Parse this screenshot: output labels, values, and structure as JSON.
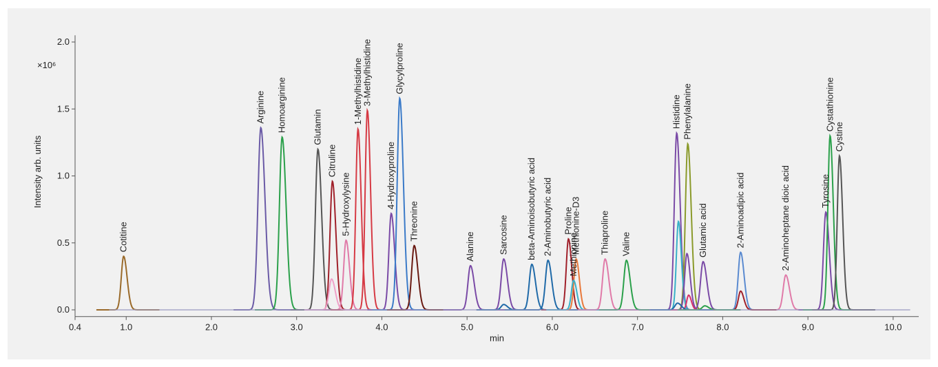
{
  "chart_data": {
    "type": "line",
    "xlabel": "min",
    "ylabel": "Intensity arb. units",
    "y_multiplier": "×10⁶",
    "xlim": [
      0.4,
      10.3
    ],
    "ylim": [
      -0.05,
      2.05
    ],
    "x_ticks": [
      0.4,
      1.0,
      2.0,
      3.0,
      4.0,
      5.0,
      6.0,
      7.0,
      8.0,
      9.0,
      10.0
    ],
    "x_tick_labels": [
      "0.4",
      "1.0",
      "2.0",
      "3.0",
      "4.0",
      "5.0",
      "6.0",
      "7.0",
      "8.0",
      "9.0",
      "10.0"
    ],
    "y_ticks": [
      0.0,
      0.5,
      1.0,
      1.5,
      2.0
    ],
    "y_tick_labels": [
      "0.0",
      "0.5",
      "1.0",
      "1.5",
      "2.0"
    ],
    "grid": false,
    "series": [
      {
        "name": "Cotitine",
        "x": 0.97,
        "y": 0.4,
        "width": 0.028,
        "color": "#9a6a2a"
      },
      {
        "name": "Arginine",
        "x": 2.58,
        "y": 1.36,
        "width": 0.034,
        "color": "#6a5aa6"
      },
      {
        "name": "Homoarginine",
        "x": 2.83,
        "y": 1.29,
        "width": 0.032,
        "color": "#2aa04a"
      },
      {
        "name": "Glutamin",
        "x": 3.25,
        "y": 1.2,
        "width": 0.03,
        "color": "#555555"
      },
      {
        "name": "Citruline",
        "x": 3.42,
        "y": 0.96,
        "width": 0.028,
        "color": "#a0202a"
      },
      {
        "name": "5-Hydroxylysine",
        "x": 3.58,
        "y": 0.52,
        "width": 0.028,
        "color": "#e07aa8"
      },
      {
        "name": "1-Methylhistidine",
        "x": 3.72,
        "y": 1.35,
        "width": 0.026,
        "color": "#d63a44"
      },
      {
        "name": "3-Methylhistidine",
        "x": 3.83,
        "y": 1.49,
        "width": 0.026,
        "color": "#d63a44"
      },
      {
        "name": "4-Hydroxyproline",
        "x": 4.11,
        "y": 0.72,
        "width": 0.028,
        "color": "#7a4aa6"
      },
      {
        "name": "Glycylproline",
        "x": 4.21,
        "y": 1.58,
        "width": 0.03,
        "color": "#3a7ac8"
      },
      {
        "name": "Threonine",
        "x": 4.38,
        "y": 0.48,
        "width": 0.03,
        "color": "#6a1a12"
      },
      {
        "name": "Alanine",
        "x": 5.04,
        "y": 0.33,
        "width": 0.03,
        "color": "#7a4aa6"
      },
      {
        "name": "Sarcosine",
        "x": 5.43,
        "y": 0.38,
        "width": 0.03,
        "color": "#7a4aa6"
      },
      {
        "name": "beta-Aminoisobutyric acid",
        "x": 5.76,
        "y": 0.34,
        "width": 0.03,
        "color": "#1f6aa8"
      },
      {
        "name": "2-Aminobutyric acid",
        "x": 5.95,
        "y": 0.37,
        "width": 0.03,
        "color": "#1f6aa8"
      },
      {
        "name": "Proline",
        "x": 6.19,
        "y": 0.53,
        "width": 0.026,
        "color": "#a0202a"
      },
      {
        "name": "Methionine-D3",
        "x": 6.28,
        "y": 0.38,
        "width": 0.026,
        "color": "#e8783a"
      },
      {
        "name": "Methionine",
        "x": 6.25,
        "y": 0.22,
        "width": 0.026,
        "color": "#38b0c8"
      },
      {
        "name": "Thiaproline",
        "x": 6.62,
        "y": 0.38,
        "width": 0.03,
        "color": "#e07aa8"
      },
      {
        "name": "Valine",
        "x": 6.87,
        "y": 0.37,
        "width": 0.03,
        "color": "#2aa04a"
      },
      {
        "name": "Histidine",
        "x": 7.46,
        "y": 1.32,
        "width": 0.028,
        "color": "#7a4aa6"
      },
      {
        "name": "Phenylalanine",
        "x": 7.59,
        "y": 1.24,
        "width": 0.028,
        "color": "#8a9a2a"
      },
      {
        "name": "Glutamic acid",
        "x": 7.77,
        "y": 0.36,
        "width": 0.03,
        "color": "#7a4aa6"
      },
      {
        "name": "2-Aminoadipic acid",
        "x": 8.21,
        "y": 0.43,
        "width": 0.028,
        "color": "#5a8ad0"
      },
      {
        "name": "2-Aminoheptane dioic acid",
        "x": 8.74,
        "y": 0.26,
        "width": 0.03,
        "color": "#e07aa8"
      },
      {
        "name": "Tyrosine",
        "x": 9.21,
        "y": 0.73,
        "width": 0.028,
        "color": "#7a4aa6"
      },
      {
        "name": "Cystathionine",
        "x": 9.26,
        "y": 1.3,
        "width": 0.026,
        "color": "#2aa04a"
      },
      {
        "name": "Cystine",
        "x": 9.37,
        "y": 1.15,
        "width": 0.026,
        "color": "#555555"
      },
      {
        "name": "",
        "x": 3.41,
        "y": 0.23,
        "width": 0.03,
        "color": "#f0a0c8"
      },
      {
        "name": "",
        "x": 7.48,
        "y": 0.66,
        "width": 0.024,
        "color": "#38b0c8"
      },
      {
        "name": "",
        "x": 7.58,
        "y": 0.42,
        "width": 0.026,
        "color": "#7a4aa6"
      },
      {
        "name": "",
        "x": 7.6,
        "y": 0.11,
        "width": 0.022,
        "color": "#d6306a"
      },
      {
        "name": "",
        "x": 8.21,
        "y": 0.14,
        "width": 0.026,
        "color": "#a0202a"
      },
      {
        "name": "",
        "x": 5.43,
        "y": 0.04,
        "width": 0.03,
        "color": "#1f6aa8"
      },
      {
        "name": "",
        "x": 7.47,
        "y": 0.05,
        "width": 0.03,
        "color": "#1f6aa8"
      },
      {
        "name": "",
        "x": 7.79,
        "y": 0.03,
        "width": 0.03,
        "color": "#2aa04a"
      }
    ]
  }
}
